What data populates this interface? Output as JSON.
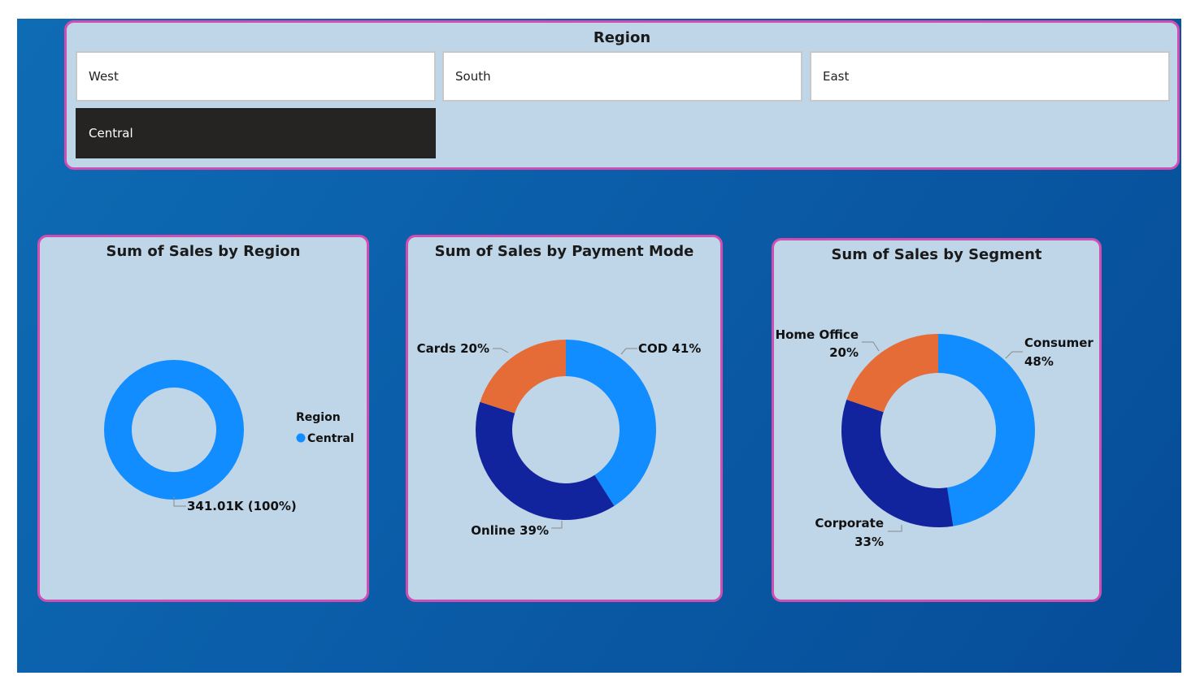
{
  "slicer": {
    "title": "Region",
    "items": [
      {
        "label": "West",
        "selected": false
      },
      {
        "label": "South",
        "selected": false
      },
      {
        "label": "East",
        "selected": false
      },
      {
        "label": "Central",
        "selected": true
      }
    ]
  },
  "colors": {
    "blue": "#118dff",
    "navy": "#12239e",
    "orange": "#e66c37",
    "panel_border": "#d14db1",
    "panel_bg": "#bfd5e8"
  },
  "chart_data": [
    {
      "type": "pie",
      "variant": "donut",
      "title": "Sum of Sales by Region",
      "legend": {
        "title": "Region",
        "entries": [
          "Central"
        ],
        "placement": "right"
      },
      "categories": [
        "Central"
      ],
      "values": [
        341010
      ],
      "colors": [
        "#118dff"
      ],
      "data_labels": [
        "341.01K (100%)"
      ]
    },
    {
      "type": "pie",
      "variant": "donut",
      "title": "Sum of Sales by Payment Mode",
      "categories": [
        "COD",
        "Online",
        "Cards"
      ],
      "values": [
        41,
        39,
        20
      ],
      "colors": [
        "#118dff",
        "#12239e",
        "#e66c37"
      ],
      "data_labels": [
        [
          "COD 41%"
        ],
        [
          "Online 39%"
        ],
        [
          "Cards 20%"
        ]
      ]
    },
    {
      "type": "pie",
      "variant": "donut",
      "title": "Sum of Sales by Segment",
      "categories": [
        "Consumer",
        "Corporate",
        "Home Office"
      ],
      "values": [
        48,
        33,
        20
      ],
      "colors": [
        "#118dff",
        "#12239e",
        "#e66c37"
      ],
      "data_labels": [
        [
          "Consumer",
          "48%"
        ],
        [
          "Corporate",
          "33%"
        ],
        [
          "Home Office",
          "20%"
        ]
      ]
    }
  ]
}
